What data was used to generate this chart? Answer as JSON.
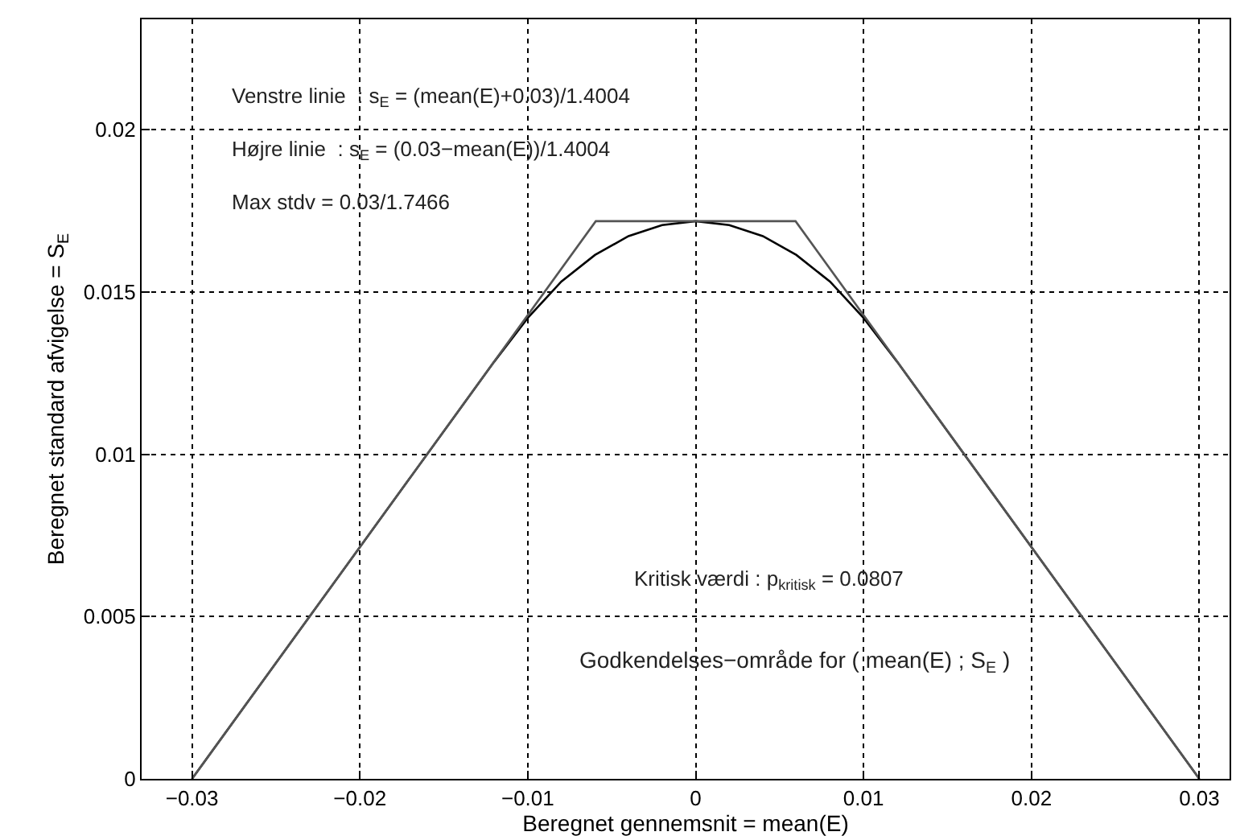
{
  "chart_data": {
    "type": "line",
    "xlabel": "Beregnet gennemsnit = mean(E)",
    "ylabel": "Beregnet standard afvigelse = S$_{E}$",
    "series": [
      {
        "color": "#000000",
        "x": [
          -0.03,
          -0.02,
          -0.012,
          -0.01,
          -0.008,
          -0.006,
          -0.004,
          -0.002,
          0,
          0.002,
          0.004,
          0.006,
          0.008,
          0.01,
          0.012,
          0.02,
          0.03
        ],
        "values": [
          0,
          0.00714,
          0.01285,
          0.0142,
          0.01532,
          0.01614,
          0.01672,
          0.01706,
          0.01718,
          0.01706,
          0.01672,
          0.01614,
          0.01532,
          0.0142,
          0.01285,
          0.00714,
          0
        ]
      },
      {
        "color": "#555555",
        "x": [
          -0.03,
          -0.00595,
          0.00595,
          0.03
        ],
        "values": [
          0,
          0.01718,
          0.01718,
          0
        ]
      }
    ],
    "annotations": [
      "Venstre linie  : s$_{E}$ = (mean(E)+0.03)/1.4004",
      "Højre linie  : s$_{E}$ = (0.03−mean(E))/1.4004",
      "Max stdv = 0.03/1.7466",
      "Kritisk værdi : p$_{kritisk}$ = 0.0807",
      "Godkendelses−område for ( mean(E) ; S$_{E}$ )"
    ],
    "xlim": [
      -0.033,
      0.0318
    ],
    "ylim": [
      0,
      0.0234
    ],
    "xticks": [
      {
        "value": -0.03,
        "label": "−0.03"
      },
      {
        "value": -0.02,
        "label": "−0.02"
      },
      {
        "value": -0.01,
        "label": "−0.01"
      },
      0,
      0.01,
      0.02,
      0.03
    ],
    "yticks": [
      0,
      0.005,
      0.01,
      0.015,
      0.02
    ],
    "grid": true,
    "marker": "none",
    "line_style": "solid"
  }
}
